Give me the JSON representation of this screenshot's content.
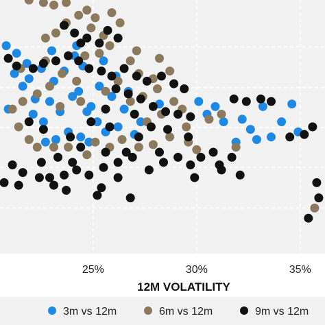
{
  "chart_data": {
    "type": "scatter",
    "title": "",
    "xlabel": "12M VOLATILITY",
    "ylabel": "",
    "xlim": [
      0.205,
      0.362
    ],
    "ylim": [
      0,
      1
    ],
    "x_ticks": [
      {
        "value": 0.25,
        "label": "25%"
      },
      {
        "value": 0.3,
        "label": "30%"
      },
      {
        "value": 0.35,
        "label": "35%"
      }
    ],
    "y_gridlines": [
      0.815,
      0.655,
      0.497,
      0.34,
      0.18
    ],
    "grid": true,
    "legend_position": "bottom",
    "series": [
      {
        "name": "3m vs 12m",
        "color": "#1e88e5",
        "points": [
          [
            0.208,
            0.82
          ],
          [
            0.213,
            0.79
          ],
          [
            0.218,
            0.75
          ],
          [
            0.216,
            0.66
          ],
          [
            0.222,
            0.61
          ],
          [
            0.209,
            0.57
          ],
          [
            0.221,
            0.55
          ],
          [
            0.226,
            0.52
          ],
          [
            0.231,
            0.68
          ],
          [
            0.236,
            0.72
          ],
          [
            0.241,
            0.78
          ],
          [
            0.245,
            0.74
          ],
          [
            0.243,
            0.64
          ],
          [
            0.249,
            0.58
          ],
          [
            0.252,
            0.52
          ],
          [
            0.256,
            0.48
          ],
          [
            0.238,
            0.48
          ],
          [
            0.232,
            0.45
          ],
          [
            0.227,
            0.44
          ],
          [
            0.244,
            0.46
          ],
          [
            0.248,
            0.44
          ],
          [
            0.253,
            0.66
          ],
          [
            0.259,
            0.62
          ],
          [
            0.265,
            0.57
          ],
          [
            0.262,
            0.5
          ],
          [
            0.27,
            0.47
          ],
          [
            0.282,
            0.59
          ],
          [
            0.291,
            0.55
          ],
          [
            0.305,
            0.55
          ],
          [
            0.313,
            0.52
          ],
          [
            0.322,
            0.53
          ],
          [
            0.329,
            0.45
          ],
          [
            0.336,
            0.46
          ],
          [
            0.341,
            0.52
          ],
          [
            0.349,
            0.48
          ],
          [
            0.319,
            0.44
          ],
          [
            0.326,
            0.49
          ],
          [
            0.301,
            0.6
          ],
          [
            0.309,
            0.58
          ],
          [
            0.332,
            0.58
          ],
          [
            0.346,
            0.59
          ],
          [
            0.273,
            0.52
          ],
          [
            0.24,
            0.62
          ],
          [
            0.247,
            0.56
          ],
          [
            0.229,
            0.6
          ],
          [
            0.234,
            0.56
          ],
          [
            0.212,
            0.71
          ],
          [
            0.219,
            0.69
          ],
          [
            0.225,
            0.73
          ],
          [
            0.23,
            0.8
          ],
          [
            0.242,
            0.82
          ],
          [
            0.255,
            0.76
          ],
          [
            0.261,
            0.7
          ],
          [
            0.267,
            0.64
          ]
        ]
      },
      {
        "name": "6m vs 12m",
        "color": "#8b7a5e",
        "points": [
          [
            0.219,
            1.0
          ],
          [
            0.226,
            0.99
          ],
          [
            0.231,
            0.98
          ],
          [
            0.237,
            0.99
          ],
          [
            0.243,
            0.94
          ],
          [
            0.247,
            0.96
          ],
          [
            0.251,
            0.93
          ],
          [
            0.259,
            0.95
          ],
          [
            0.263,
            0.91
          ],
          [
            0.237,
            0.91
          ],
          [
            0.232,
            0.87
          ],
          [
            0.227,
            0.85
          ],
          [
            0.249,
            0.89
          ],
          [
            0.255,
            0.86
          ],
          [
            0.258,
            0.82
          ],
          [
            0.246,
            0.78
          ],
          [
            0.253,
            0.79
          ],
          [
            0.268,
            0.76
          ],
          [
            0.272,
            0.71
          ],
          [
            0.279,
            0.69
          ],
          [
            0.287,
            0.72
          ],
          [
            0.281,
            0.65
          ],
          [
            0.274,
            0.62
          ],
          [
            0.268,
            0.6
          ],
          [
            0.289,
            0.6
          ],
          [
            0.293,
            0.57
          ],
          [
            0.283,
            0.55
          ],
          [
            0.276,
            0.52
          ],
          [
            0.262,
            0.68
          ],
          [
            0.256,
            0.64
          ],
          [
            0.242,
            0.68
          ],
          [
            0.235,
            0.71
          ],
          [
            0.229,
            0.66
          ],
          [
            0.223,
            0.63
          ],
          [
            0.216,
            0.6
          ],
          [
            0.211,
            0.57
          ],
          [
            0.214,
            0.5
          ],
          [
            0.219,
            0.45
          ],
          [
            0.223,
            0.42
          ],
          [
            0.231,
            0.42
          ],
          [
            0.238,
            0.42
          ],
          [
            0.247,
            0.39
          ],
          [
            0.251,
            0.44
          ],
          [
            0.258,
            0.42
          ],
          [
            0.264,
            0.45
          ],
          [
            0.272,
            0.42
          ],
          [
            0.279,
            0.43
          ],
          [
            0.287,
            0.46
          ],
          [
            0.295,
            0.5
          ],
          [
            0.306,
            0.53
          ],
          [
            0.312,
            0.55
          ],
          [
            0.319,
            0.42
          ],
          [
            0.357,
            0.18
          ],
          [
            0.3,
            0.41
          ],
          [
            0.296,
            0.44
          ],
          [
            0.244,
            0.6
          ],
          [
            0.234,
            0.58
          ],
          [
            0.227,
            0.76
          ],
          [
            0.215,
            0.73
          ],
          [
            0.271,
            0.8
          ],
          [
            0.282,
            0.77
          ]
        ]
      },
      {
        "name": "9m vs 12m",
        "color": "#111111",
        "points": [
          [
            0.236,
            0.9
          ],
          [
            0.241,
            0.87
          ],
          [
            0.247,
            0.85
          ],
          [
            0.257,
            0.88
          ],
          [
            0.262,
            0.85
          ],
          [
            0.253,
            0.83
          ],
          [
            0.244,
            0.83
          ],
          [
            0.209,
            0.77
          ],
          [
            0.213,
            0.74
          ],
          [
            0.221,
            0.73
          ],
          [
            0.226,
            0.75
          ],
          [
            0.232,
            0.76
          ],
          [
            0.238,
            0.78
          ],
          [
            0.243,
            0.76
          ],
          [
            0.248,
            0.73
          ],
          [
            0.254,
            0.72
          ],
          [
            0.259,
            0.7
          ],
          [
            0.265,
            0.73
          ],
          [
            0.271,
            0.7
          ],
          [
            0.276,
            0.68
          ],
          [
            0.283,
            0.7
          ],
          [
            0.289,
            0.67
          ],
          [
            0.294,
            0.65
          ],
          [
            0.261,
            0.65
          ],
          [
            0.267,
            0.63
          ],
          [
            0.273,
            0.61
          ],
          [
            0.279,
            0.58
          ],
          [
            0.285,
            0.56
          ],
          [
            0.291,
            0.55
          ],
          [
            0.297,
            0.54
          ],
          [
            0.318,
            0.61
          ],
          [
            0.324,
            0.6
          ],
          [
            0.331,
            0.61
          ],
          [
            0.336,
            0.6
          ],
          [
            0.345,
            0.46
          ],
          [
            0.352,
            0.47
          ],
          [
            0.356,
            0.5
          ],
          [
            0.358,
            0.28
          ],
          [
            0.359,
            0.22
          ],
          [
            0.354,
            0.14
          ],
          [
            0.311,
            0.35
          ],
          [
            0.317,
            0.38
          ],
          [
            0.308,
            0.4
          ],
          [
            0.302,
            0.38
          ],
          [
            0.297,
            0.35
          ],
          [
            0.291,
            0.38
          ],
          [
            0.284,
            0.36
          ],
          [
            0.277,
            0.33
          ],
          [
            0.269,
            0.38
          ],
          [
            0.262,
            0.36
          ],
          [
            0.255,
            0.34
          ],
          [
            0.248,
            0.31
          ],
          [
            0.242,
            0.33
          ],
          [
            0.236,
            0.31
          ],
          [
            0.229,
            0.3
          ],
          [
            0.224,
            0.3
          ],
          [
            0.216,
            0.32
          ],
          [
            0.211,
            0.35
          ],
          [
            0.207,
            0.28
          ],
          [
            0.214,
            0.27
          ],
          [
            0.231,
            0.27
          ],
          [
            0.237,
            0.25
          ],
          [
            0.252,
            0.23
          ],
          [
            0.268,
            0.22
          ],
          [
            0.254,
            0.26
          ],
          [
            0.262,
            0.3
          ],
          [
            0.244,
            0.42
          ],
          [
            0.239,
            0.46
          ],
          [
            0.226,
            0.49
          ],
          [
            0.219,
            0.52
          ],
          [
            0.256,
            0.57
          ],
          [
            0.27,
            0.55
          ],
          [
            0.278,
            0.5
          ],
          [
            0.258,
            0.5
          ],
          [
            0.249,
            0.52
          ],
          [
            0.286,
            0.49
          ],
          [
            0.296,
            0.46
          ],
          [
            0.272,
            0.46
          ],
          [
            0.266,
            0.4
          ],
          [
            0.256,
            0.4
          ],
          [
            0.233,
            0.38
          ],
          [
            0.225,
            0.36
          ],
          [
            0.24,
            0.36
          ],
          [
            0.282,
            0.4
          ],
          [
            0.299,
            0.3
          ],
          [
            0.312,
            0.33
          ],
          [
            0.321,
            0.31
          ]
        ]
      }
    ]
  }
}
